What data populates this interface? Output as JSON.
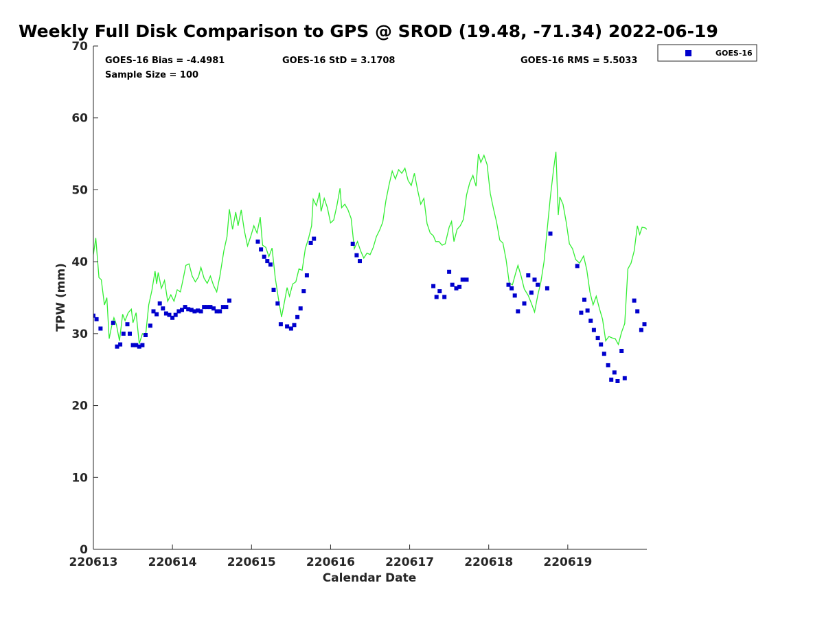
{
  "chart_data": {
    "type": "scatter",
    "title": "Weekly Full Disk Comparison to GPS @ SROD (19.48, -71.34) 2022-06-19",
    "xlabel": "Calendar Date",
    "ylabel": "TPW (mm)",
    "xlim": [
      0,
      7
    ],
    "ylim": [
      0,
      70
    ],
    "y_ticks": [
      0,
      10,
      20,
      30,
      40,
      50,
      60,
      70
    ],
    "x_tick_labels": [
      "220613",
      "220614",
      "220615",
      "220616",
      "220617",
      "220618",
      "220619"
    ],
    "stats": {
      "bias": "GOES-16 Bias = -4.4981",
      "std": "GOES-16 StD = 3.1708",
      "rms": "GOES-16 RMS = 5.5033",
      "sample_size": "Sample Size = 100"
    },
    "legend": {
      "location": "top-right outside",
      "entries": [
        "GOES-16"
      ]
    },
    "colors": {
      "scatter": "#0000cc",
      "line": "#33ee33",
      "axes": "#262626"
    },
    "series": [
      {
        "name": "GOES-16",
        "kind": "scatter",
        "points": [
          [
            0.0,
            32.5
          ],
          [
            0.04,
            32.0
          ],
          [
            0.09,
            30.7
          ],
          [
            0.25,
            31.5
          ],
          [
            0.3,
            28.2
          ],
          [
            0.34,
            28.5
          ],
          [
            0.38,
            30.0
          ],
          [
            0.43,
            31.3
          ],
          [
            0.46,
            30.0
          ],
          [
            0.5,
            28.4
          ],
          [
            0.54,
            28.4
          ],
          [
            0.58,
            28.2
          ],
          [
            0.62,
            28.4
          ],
          [
            0.66,
            29.8
          ],
          [
            0.72,
            31.1
          ],
          [
            0.76,
            33.1
          ],
          [
            0.8,
            32.7
          ],
          [
            0.84,
            34.2
          ],
          [
            0.88,
            33.5
          ],
          [
            0.92,
            32.8
          ],
          [
            0.96,
            32.6
          ],
          [
            1.0,
            32.2
          ],
          [
            1.04,
            32.6
          ],
          [
            1.08,
            33.1
          ],
          [
            1.12,
            33.3
          ],
          [
            1.16,
            33.7
          ],
          [
            1.2,
            33.4
          ],
          [
            1.24,
            33.3
          ],
          [
            1.28,
            33.1
          ],
          [
            1.32,
            33.2
          ],
          [
            1.36,
            33.1
          ],
          [
            1.4,
            33.7
          ],
          [
            1.44,
            33.7
          ],
          [
            1.48,
            33.7
          ],
          [
            1.52,
            33.5
          ],
          [
            1.56,
            33.1
          ],
          [
            1.6,
            33.1
          ],
          [
            1.64,
            33.7
          ],
          [
            1.68,
            33.7
          ],
          [
            1.72,
            34.6
          ],
          [
            2.08,
            42.8
          ],
          [
            2.12,
            41.7
          ],
          [
            2.16,
            40.7
          ],
          [
            2.2,
            40.1
          ],
          [
            2.24,
            39.6
          ],
          [
            2.28,
            36.1
          ],
          [
            2.33,
            34.2
          ],
          [
            2.37,
            31.3
          ],
          [
            2.45,
            31.0
          ],
          [
            2.5,
            30.7
          ],
          [
            2.54,
            31.2
          ],
          [
            2.58,
            32.3
          ],
          [
            2.62,
            33.5
          ],
          [
            2.66,
            35.9
          ],
          [
            2.7,
            38.1
          ],
          [
            2.75,
            42.6
          ],
          [
            2.79,
            43.2
          ],
          [
            3.28,
            42.5
          ],
          [
            3.33,
            40.9
          ],
          [
            3.37,
            40.1
          ],
          [
            4.3,
            36.6
          ],
          [
            4.34,
            35.1
          ],
          [
            4.38,
            35.9
          ],
          [
            4.44,
            35.1
          ],
          [
            4.5,
            38.6
          ],
          [
            4.54,
            36.8
          ],
          [
            4.59,
            36.3
          ],
          [
            4.63,
            36.5
          ],
          [
            4.67,
            37.5
          ],
          [
            4.72,
            37.5
          ],
          [
            5.25,
            36.8
          ],
          [
            5.29,
            36.3
          ],
          [
            5.33,
            35.3
          ],
          [
            5.37,
            33.1
          ],
          [
            5.45,
            34.2
          ],
          [
            5.5,
            38.1
          ],
          [
            5.54,
            35.7
          ],
          [
            5.58,
            37.5
          ],
          [
            5.62,
            36.8
          ],
          [
            5.74,
            36.3
          ],
          [
            5.78,
            43.9
          ],
          [
            6.12,
            39.4
          ],
          [
            6.17,
            32.9
          ],
          [
            6.21,
            34.7
          ],
          [
            6.25,
            33.2
          ],
          [
            6.29,
            31.8
          ],
          [
            6.33,
            30.5
          ],
          [
            6.38,
            29.4
          ],
          [
            6.42,
            28.5
          ],
          [
            6.46,
            27.2
          ],
          [
            6.51,
            25.6
          ],
          [
            6.55,
            23.6
          ],
          [
            6.59,
            24.6
          ],
          [
            6.63,
            23.4
          ],
          [
            6.68,
            27.6
          ],
          [
            6.72,
            23.8
          ],
          [
            6.84,
            34.6
          ],
          [
            6.88,
            33.1
          ],
          [
            6.93,
            30.5
          ],
          [
            6.97,
            31.3
          ]
        ]
      },
      {
        "name": "GPS",
        "kind": "line",
        "points": [
          [
            0.0,
            41.0
          ],
          [
            0.03,
            43.3
          ],
          [
            0.07,
            37.8
          ],
          [
            0.1,
            37.5
          ],
          [
            0.14,
            34.0
          ],
          [
            0.17,
            35.0
          ],
          [
            0.2,
            29.3
          ],
          [
            0.23,
            31.0
          ],
          [
            0.26,
            32.2
          ],
          [
            0.29,
            31.3
          ],
          [
            0.33,
            29.0
          ],
          [
            0.37,
            32.7
          ],
          [
            0.4,
            31.8
          ],
          [
            0.44,
            32.9
          ],
          [
            0.48,
            33.4
          ],
          [
            0.5,
            31.5
          ],
          [
            0.54,
            32.9
          ],
          [
            0.58,
            28.6
          ],
          [
            0.62,
            30.0
          ],
          [
            0.66,
            29.7
          ],
          [
            0.7,
            34.0
          ],
          [
            0.74,
            36.0
          ],
          [
            0.78,
            38.7
          ],
          [
            0.8,
            36.9
          ],
          [
            0.82,
            38.5
          ],
          [
            0.86,
            36.3
          ],
          [
            0.9,
            37.4
          ],
          [
            0.94,
            34.5
          ],
          [
            0.98,
            35.4
          ],
          [
            1.02,
            34.5
          ],
          [
            1.06,
            36.1
          ],
          [
            1.1,
            35.8
          ],
          [
            1.13,
            37.3
          ],
          [
            1.17,
            39.5
          ],
          [
            1.21,
            39.7
          ],
          [
            1.25,
            38.0
          ],
          [
            1.29,
            37.2
          ],
          [
            1.33,
            37.9
          ],
          [
            1.36,
            39.2
          ],
          [
            1.4,
            37.7
          ],
          [
            1.44,
            37.0
          ],
          [
            1.48,
            38.0
          ],
          [
            1.52,
            36.7
          ],
          [
            1.56,
            35.8
          ],
          [
            1.6,
            38.0
          ],
          [
            1.65,
            41.5
          ],
          [
            1.69,
            43.5
          ],
          [
            1.72,
            47.3
          ],
          [
            1.76,
            44.5
          ],
          [
            1.8,
            46.9
          ],
          [
            1.83,
            45.0
          ],
          [
            1.87,
            47.2
          ],
          [
            1.91,
            44.3
          ],
          [
            1.95,
            42.2
          ],
          [
            1.99,
            43.5
          ],
          [
            2.03,
            45.0
          ],
          [
            2.07,
            44.0
          ],
          [
            2.11,
            46.2
          ],
          [
            2.14,
            42.3
          ],
          [
            2.18,
            42.0
          ],
          [
            2.22,
            40.7
          ],
          [
            2.26,
            41.9
          ],
          [
            2.3,
            37.8
          ],
          [
            2.34,
            34.9
          ],
          [
            2.38,
            32.3
          ],
          [
            2.42,
            34.6
          ],
          [
            2.45,
            36.4
          ],
          [
            2.48,
            35.2
          ],
          [
            2.52,
            36.9
          ],
          [
            2.56,
            37.2
          ],
          [
            2.6,
            39.0
          ],
          [
            2.64,
            38.8
          ],
          [
            2.68,
            41.8
          ],
          [
            2.72,
            43.2
          ],
          [
            2.76,
            45.0
          ],
          [
            2.78,
            48.7
          ],
          [
            2.82,
            47.8
          ],
          [
            2.86,
            49.6
          ],
          [
            2.88,
            47.0
          ],
          [
            2.92,
            48.8
          ],
          [
            2.96,
            47.5
          ],
          [
            3.0,
            45.4
          ],
          [
            3.04,
            45.8
          ],
          [
            3.08,
            47.8
          ],
          [
            3.12,
            50.2
          ],
          [
            3.14,
            47.5
          ],
          [
            3.18,
            48.0
          ],
          [
            3.22,
            47.2
          ],
          [
            3.26,
            46.0
          ],
          [
            3.3,
            41.8
          ],
          [
            3.34,
            42.8
          ],
          [
            3.38,
            41.5
          ],
          [
            3.42,
            40.5
          ],
          [
            3.46,
            41.2
          ],
          [
            3.5,
            41.0
          ],
          [
            3.54,
            42.0
          ],
          [
            3.58,
            43.5
          ],
          [
            3.62,
            44.4
          ],
          [
            3.66,
            45.5
          ],
          [
            3.7,
            48.5
          ],
          [
            3.74,
            50.7
          ],
          [
            3.78,
            52.6
          ],
          [
            3.82,
            51.5
          ],
          [
            3.86,
            52.8
          ],
          [
            3.9,
            52.3
          ],
          [
            3.94,
            53.0
          ],
          [
            3.98,
            51.3
          ],
          [
            4.02,
            50.6
          ],
          [
            4.06,
            52.3
          ],
          [
            4.1,
            50.0
          ],
          [
            4.14,
            48.0
          ],
          [
            4.18,
            48.8
          ],
          [
            4.22,
            45.3
          ],
          [
            4.26,
            44.0
          ],
          [
            4.3,
            43.6
          ],
          [
            4.33,
            42.8
          ],
          [
            4.37,
            42.8
          ],
          [
            4.41,
            42.3
          ],
          [
            4.45,
            42.5
          ],
          [
            4.5,
            44.8
          ],
          [
            4.53,
            45.6
          ],
          [
            4.56,
            42.8
          ],
          [
            4.6,
            44.5
          ],
          [
            4.64,
            45.0
          ],
          [
            4.68,
            45.9
          ],
          [
            4.72,
            49.3
          ],
          [
            4.76,
            51.0
          ],
          [
            4.8,
            52.0
          ],
          [
            4.84,
            50.5
          ],
          [
            4.87,
            55.0
          ],
          [
            4.9,
            53.8
          ],
          [
            4.94,
            54.8
          ],
          [
            4.98,
            53.5
          ],
          [
            5.02,
            49.5
          ],
          [
            5.06,
            47.4
          ],
          [
            5.1,
            45.5
          ],
          [
            5.14,
            43.0
          ],
          [
            5.18,
            42.6
          ],
          [
            5.22,
            40.3
          ],
          [
            5.26,
            37.0
          ],
          [
            5.3,
            36.8
          ],
          [
            5.34,
            38.4
          ],
          [
            5.37,
            39.5
          ],
          [
            5.41,
            38.0
          ],
          [
            5.45,
            36.2
          ],
          [
            5.5,
            35.3
          ],
          [
            5.54,
            34.2
          ],
          [
            5.58,
            33.0
          ],
          [
            5.62,
            35.3
          ],
          [
            5.66,
            37.2
          ],
          [
            5.7,
            40.0
          ],
          [
            5.74,
            44.5
          ],
          [
            5.78,
            49.0
          ],
          [
            5.82,
            52.8
          ],
          [
            5.85,
            55.3
          ],
          [
            5.88,
            46.5
          ],
          [
            5.9,
            49.0
          ],
          [
            5.94,
            48.0
          ],
          [
            5.98,
            45.5
          ],
          [
            6.02,
            42.5
          ],
          [
            6.06,
            41.8
          ],
          [
            6.1,
            40.3
          ],
          [
            6.15,
            39.8
          ],
          [
            6.2,
            40.8
          ],
          [
            6.24,
            38.9
          ],
          [
            6.28,
            35.8
          ],
          [
            6.32,
            34.0
          ],
          [
            6.36,
            35.2
          ],
          [
            6.4,
            33.5
          ],
          [
            6.44,
            32.0
          ],
          [
            6.48,
            29.0
          ],
          [
            6.52,
            29.6
          ],
          [
            6.56,
            29.4
          ],
          [
            6.6,
            29.3
          ],
          [
            6.64,
            28.5
          ],
          [
            6.68,
            30.2
          ],
          [
            6.72,
            31.4
          ],
          [
            6.76,
            39.0
          ],
          [
            6.8,
            39.8
          ],
          [
            6.84,
            41.5
          ],
          [
            6.88,
            45.0
          ],
          [
            6.91,
            43.8
          ],
          [
            6.94,
            44.8
          ],
          [
            6.98,
            44.7
          ],
          [
            7.0,
            44.5
          ]
        ]
      }
    ]
  }
}
